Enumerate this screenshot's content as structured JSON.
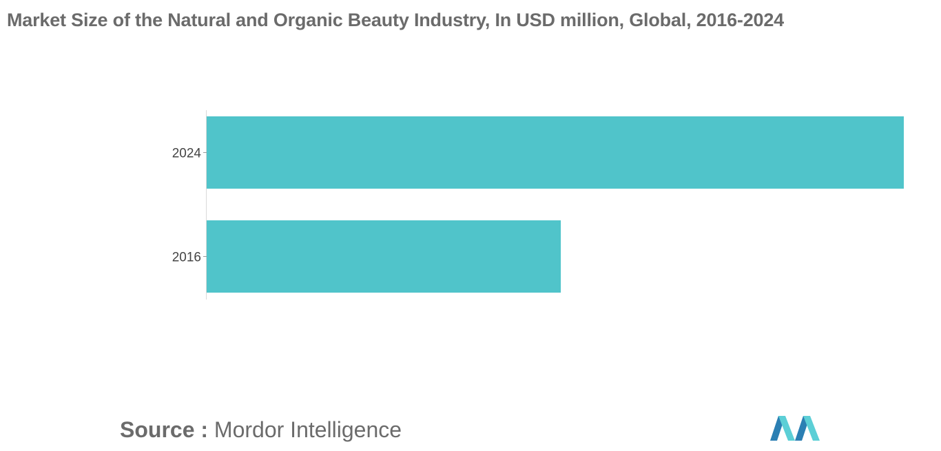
{
  "chart_data": {
    "type": "bar",
    "orientation": "horizontal",
    "title": "Market Size of the Natural and Organic Beauty Industry, In USD million, Global, 2016-2024",
    "categories": [
      "2024",
      "2016"
    ],
    "values": [
      100,
      50.8
    ],
    "xlim": [
      0,
      100
    ],
    "xlabel": "",
    "ylabel": "",
    "grid": false,
    "bar_color": "#50C4CA"
  },
  "source": {
    "label": "Source :",
    "text": "Mordor Intelligence"
  },
  "colors": {
    "title": "#6b6b6b",
    "logo_dark": "#2b7fb3",
    "logo_light": "#5ccfd6"
  }
}
